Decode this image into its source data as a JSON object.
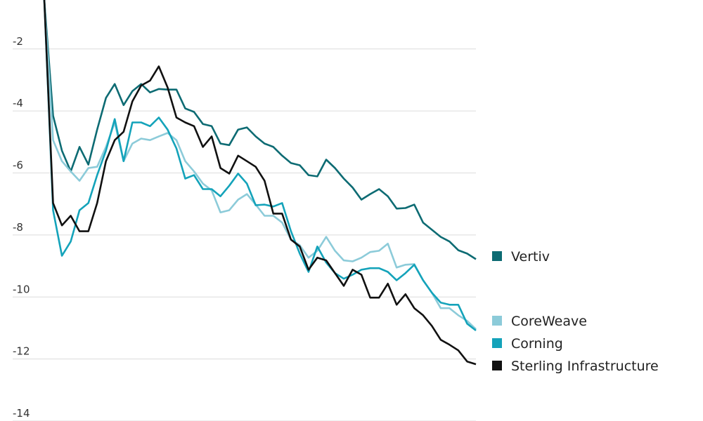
{
  "chart_data": {
    "type": "line",
    "categories": [
      null,
      null,
      null,
      null,
      null,
      null,
      null,
      null,
      null,
      null,
      null,
      null,
      null,
      null,
      null,
      null,
      null,
      null,
      null,
      null,
      null,
      null,
      null,
      null,
      null,
      null,
      null,
      null,
      null,
      null,
      null,
      null,
      null,
      null,
      null,
      null,
      null,
      null,
      null,
      null,
      null,
      null,
      null,
      null,
      null,
      null,
      null,
      null,
      null,
      null
    ],
    "ylim": [
      -14,
      -0.42
    ],
    "yticks": [
      -2,
      -4,
      -6,
      -8,
      -10,
      -12,
      -14
    ],
    "grid": true,
    "series": [
      {
        "name": "Vertiv",
        "color": "#0d6b73",
        "values": [
          -0.42,
          -4.15,
          -5.28,
          -5.95,
          -5.16,
          -5.73,
          -4.6,
          -3.58,
          -3.13,
          -3.81,
          -3.36,
          -3.13,
          -3.4,
          -3.29,
          -3.31,
          -3.31,
          -3.92,
          -4.03,
          -4.42,
          -4.49,
          -5.05,
          -5.1,
          -4.6,
          -4.53,
          -4.82,
          -5.05,
          -5.16,
          -5.44,
          -5.68,
          -5.75,
          -6.07,
          -6.11,
          -5.57,
          -5.84,
          -6.18,
          -6.47,
          -6.86,
          -6.68,
          -6.52,
          -6.75,
          -7.15,
          -7.13,
          -7.02,
          -7.6,
          -7.83,
          -8.06,
          -8.21,
          -8.49,
          -8.6,
          -8.78
        ]
      },
      {
        "name": "CoreWeave",
        "color": "#8ccbd9",
        "values": [
          -0.42,
          -4.94,
          -5.62,
          -5.95,
          -6.25,
          -5.84,
          -5.8,
          -5.16,
          -4.37,
          -5.62,
          -5.05,
          -4.89,
          -4.94,
          -4.82,
          -4.71,
          -4.94,
          -5.62,
          -5.95,
          -6.34,
          -6.56,
          -7.27,
          -7.2,
          -6.86,
          -6.68,
          -7.02,
          -7.38,
          -7.38,
          -7.6,
          -8.15,
          -8.33,
          -8.73,
          -8.51,
          -8.06,
          -8.51,
          -8.82,
          -8.85,
          -8.73,
          -8.55,
          -8.51,
          -8.28,
          -9.05,
          -8.96,
          -8.94,
          -9.46,
          -9.86,
          -10.36,
          -10.36,
          -10.59,
          -10.77,
          -11.04
        ]
      },
      {
        "name": "Corning",
        "color": "#14a3ba",
        "values": [
          -0.42,
          -7.2,
          -8.67,
          -8.21,
          -7.2,
          -6.97,
          -6.07,
          -5.28,
          -4.26,
          -5.62,
          -4.37,
          -4.37,
          -4.49,
          -4.21,
          -4.6,
          -5.21,
          -6.18,
          -6.07,
          -6.52,
          -6.52,
          -6.75,
          -6.41,
          -6.02,
          -6.34,
          -7.04,
          -7.02,
          -7.08,
          -6.97,
          -7.88,
          -8.6,
          -9.19,
          -8.37,
          -8.89,
          -9.23,
          -9.41,
          -9.28,
          -9.12,
          -9.07,
          -9.07,
          -9.19,
          -9.46,
          -9.23,
          -8.96,
          -9.46,
          -9.86,
          -10.18,
          -10.25,
          -10.25,
          -10.86,
          -11.08
        ]
      },
      {
        "name": "Sterling Infrastructure",
        "color": "#111111",
        "values": [
          -0.42,
          -6.97,
          -7.69,
          -7.38,
          -7.88,
          -7.88,
          -6.97,
          -5.62,
          -4.94,
          -4.67,
          -3.69,
          -3.18,
          -3.02,
          -2.56,
          -3.24,
          -4.21,
          -4.37,
          -4.49,
          -5.16,
          -4.82,
          -5.84,
          -6.02,
          -5.44,
          -5.62,
          -5.8,
          -6.25,
          -7.31,
          -7.31,
          -8.15,
          -8.37,
          -9.12,
          -8.73,
          -8.82,
          -9.23,
          -9.64,
          -9.12,
          -9.28,
          -10.02,
          -10.02,
          -9.57,
          -10.25,
          -9.91,
          -10.36,
          -10.59,
          -10.93,
          -11.38,
          -11.54,
          -11.72,
          -12.08,
          -12.17
        ]
      }
    ]
  }
}
